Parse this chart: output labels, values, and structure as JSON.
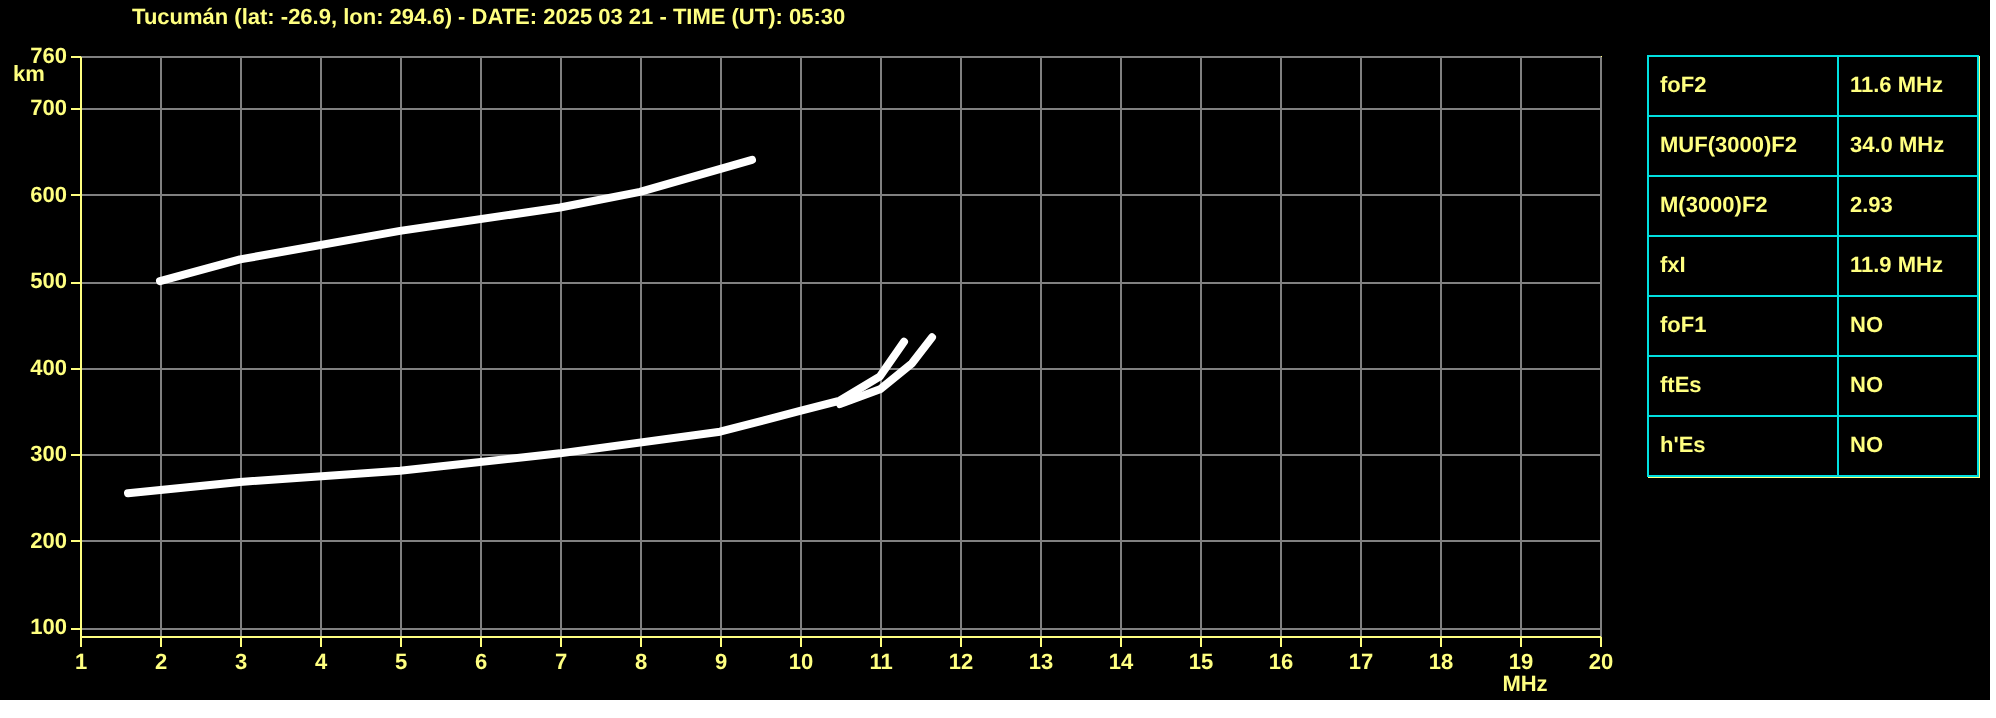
{
  "chart_data": [
    {
      "type": "line",
      "title": "Tucumán (lat: -26.9, lon: 294.6) - DATE: 2025 03 21 - TIME (UT): 05:30",
      "xlabel": "MHz",
      "ylabel": "km",
      "xlim": [
        1,
        20
      ],
      "ylim": [
        90,
        760
      ],
      "xticks": [
        1,
        2,
        3,
        4,
        5,
        6,
        7,
        8,
        9,
        10,
        11,
        12,
        13,
        14,
        15,
        16,
        17,
        18,
        19,
        20
      ],
      "yticks": [
        100,
        200,
        300,
        400,
        500,
        600,
        700,
        760
      ],
      "grid": true,
      "line_style": "solid",
      "marker": "none",
      "series": [
        {
          "color": "#ffffff",
          "x": [
            1.6,
            3,
            5,
            7,
            9,
            10,
            10.5,
            11,
            11.3
          ],
          "values": [
            255,
            268,
            281,
            301,
            326,
            350,
            362,
            390,
            430
          ]
        },
        {
          "color": "#ffffff",
          "x": [
            10.5,
            11,
            11.4,
            11.65
          ],
          "values": [
            358,
            375,
            405,
            435
          ]
        },
        {
          "color": "#ffffff",
          "x": [
            2,
            3,
            5,
            7,
            8,
            9.4
          ],
          "values": [
            500,
            525,
            558,
            585,
            603,
            640
          ]
        }
      ]
    },
    {
      "type": "other",
      "annotations": [
        "foF2",
        "11.6 MHz",
        "MUF(3000)F2",
        "34.0 MHz",
        "M(3000)F2",
        "2.93",
        "fxI",
        "11.9 MHz",
        "foF1",
        "NO",
        "ftEs",
        "NO",
        "h'Es",
        "NO"
      ]
    }
  ]
}
